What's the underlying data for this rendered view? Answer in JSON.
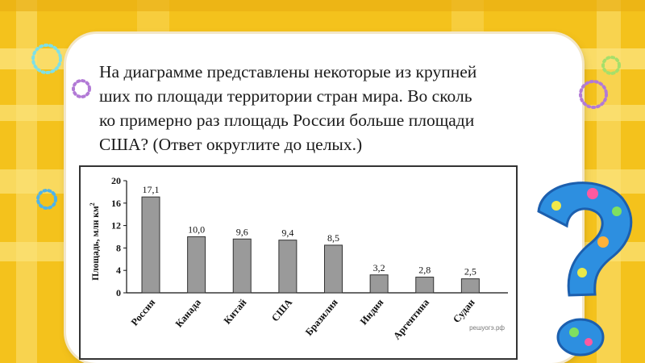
{
  "slide": {
    "question_lines": [
      "На диаграмме представлены некоторые из крупней",
      "ших по площади территории стран мира. Во сколь",
      "ко примерно раз площадь России больше площади",
      "США? (Ответ округлите до целых.)"
    ],
    "colors": {
      "frame": "#f4c21c",
      "stripe": "#fbe27a",
      "card": "#ffffff",
      "bar": "#9a9a9a"
    },
    "decorations": [
      "dotted-ring-icon",
      "question-mark-icon"
    ]
  },
  "chart_data": {
    "type": "bar",
    "categories": [
      "Россия",
      "Канада",
      "Китай",
      "США",
      "Бразилия",
      "Индия",
      "Аргентина",
      "Судан"
    ],
    "values": [
      17.1,
      10.0,
      9.6,
      9.4,
      8.5,
      3.2,
      2.8,
      2.5
    ],
    "value_labels": [
      "17,1",
      "10,0",
      "9,6",
      "9,4",
      "8,5",
      "3,2",
      "2,8",
      "2,5"
    ],
    "ylabel": "Площадь, млн км",
    "ylabel_superscript": "2",
    "ylim": [
      0,
      20
    ],
    "yticks": [
      "0",
      "4",
      "8",
      "12",
      "16",
      "20"
    ],
    "watermark": "решуогэ.рф"
  }
}
